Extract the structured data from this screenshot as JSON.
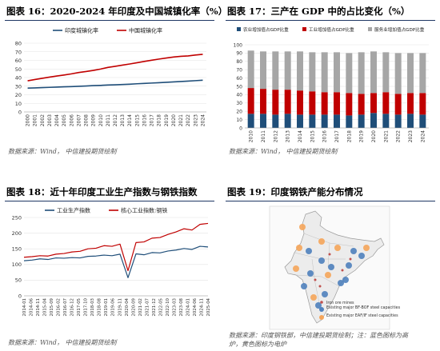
{
  "panel16": {
    "title": "图表 16：2020-2024 年印度及中国城镇化率（%）",
    "source": "数据来源：Wind，  中信建投期货绘制"
  },
  "panel17": {
    "title": "图表 17：三产在 GDP 中的占比变化（%）",
    "source": "数据来源：Wind，  中信建投期货绘制"
  },
  "panel18": {
    "title": "图表 18：近十年印度工业生产指数与钢铁指数",
    "source": "数据来源：Wind，  中信建投期货绘制"
  },
  "panel19": {
    "title": "图表 19：印度钢铁产能分布情况",
    "source_line1": "数据来源：印度钢铁部，中信建投期货绘制；注：蓝色图标为高",
    "source_line2": "炉，黄色图标为电炉",
    "legend": [
      "Iron ore mines",
      "Existing major BF-BOF steel capacities",
      "Existing major EAF/IF steel capacities"
    ]
  },
  "colors": {
    "navy": "#1f4e79",
    "red": "#c00000",
    "gray": "#a6a6a6",
    "blue": "#1f77b4"
  },
  "chart_data": [
    {
      "id": "chart16",
      "type": "line",
      "x": [
        "2000",
        "2001",
        "2002",
        "2003",
        "2004",
        "2005",
        "2006",
        "2007",
        "2008",
        "2009",
        "2010",
        "2011",
        "2012",
        "2013",
        "2014",
        "2015",
        "2016",
        "2017",
        "2018",
        "2019",
        "2020",
        "2021",
        "2022",
        "2023",
        "2024"
      ],
      "series": [
        {
          "name": "印度城镇化率",
          "color": "#1f4e79",
          "values": [
            27.7,
            28.0,
            28.3,
            28.6,
            28.9,
            29.2,
            29.5,
            29.8,
            30.2,
            30.6,
            30.9,
            31.3,
            31.6,
            31.9,
            32.3,
            32.8,
            33.2,
            33.6,
            34.0,
            34.5,
            34.9,
            35.4,
            35.9,
            36.4,
            36.9
          ]
        },
        {
          "name": "中国城镇化率",
          "color": "#c00000",
          "values": [
            36.2,
            37.7,
            39.1,
            40.5,
            41.8,
            43.0,
            44.3,
            45.9,
            47.0,
            48.3,
            49.9,
            51.8,
            53.1,
            54.5,
            55.8,
            57.3,
            58.8,
            60.2,
            61.5,
            62.7,
            63.9,
            64.7,
            65.2,
            66.2,
            67.0
          ]
        }
      ],
      "ylim": [
        0,
        80
      ],
      "yticks": [
        0,
        10,
        20,
        30,
        40,
        50,
        60,
        70,
        80
      ],
      "grid": true,
      "legend": "top"
    },
    {
      "id": "chart17",
      "type": "bar",
      "stacked": true,
      "categories": [
        "2010",
        "2011",
        "2012",
        "2013",
        "2014",
        "2015",
        "2016",
        "2017",
        "2018",
        "2019",
        "2020",
        "2021",
        "2022",
        "2023",
        "2024"
      ],
      "series": [
        {
          "name": "农业增加值占GDP比重",
          "color": "#1f4e79",
          "values": [
            17,
            17,
            16,
            17,
            16,
            16,
            16,
            16,
            15,
            16,
            18,
            17,
            16,
            17,
            16
          ]
        },
        {
          "name": "工业增加值占GDP比重",
          "color": "#c00000",
          "values": [
            31,
            30,
            30,
            29,
            29,
            28,
            27,
            27,
            27,
            25,
            24,
            26,
            25,
            25,
            26
          ]
        },
        {
          "name": "服务业增加值占GDP比重",
          "color": "#a6a6a6",
          "values": [
            45,
            45,
            46,
            46,
            47,
            47,
            48,
            48,
            48,
            50,
            50,
            48,
            49,
            48,
            48
          ]
        }
      ],
      "ylim": [
        0,
        100
      ],
      "yticks": [
        0,
        10,
        20,
        30,
        40,
        50,
        60,
        70,
        80,
        90,
        100
      ],
      "grid": true,
      "legend": "top"
    },
    {
      "id": "chart18",
      "type": "line",
      "x": [
        "2014-01",
        "2014-07",
        "2015-01",
        "2015-07",
        "2016-01",
        "2016-07",
        "2017-01",
        "2017-07",
        "2018-01",
        "2018-07",
        "2019-01",
        "2019-07",
        "2020-01",
        "2020-07",
        "2021-01",
        "2021-07",
        "2022-01",
        "2022-07",
        "2023-01",
        "2023-07",
        "2024-01",
        "2024-07",
        "2025-01",
        "2025-04"
      ],
      "x_tick_labels": [
        "2014-01",
        "2014-06",
        "2014-11",
        "2015-04",
        "2015-09",
        "2016-02",
        "2016-07",
        "2016-12",
        "2017-05",
        "2017-10",
        "2018-03",
        "2018-08",
        "2019-01",
        "2019-06",
        "2019-11",
        "2020-04",
        "2020-09",
        "2021-02",
        "2021-07",
        "2021-12",
        "2022-05",
        "2022-10",
        "2023-03",
        "2023-08",
        "2024-01",
        "2024-06",
        "2024-11",
        "2025-04"
      ],
      "series": [
        {
          "name": "工业生产指数",
          "color": "#1f4e79",
          "values": [
            112,
            114,
            118,
            116,
            121,
            120,
            122,
            121,
            126,
            127,
            130,
            128,
            133,
            58,
            134,
            131,
            138,
            137,
            143,
            146,
            151,
            148,
            158,
            156
          ]
        },
        {
          "name": "核心工业指数:钢铁",
          "color": "#c00000",
          "values": [
            123,
            125,
            128,
            127,
            133,
            135,
            140,
            142,
            150,
            152,
            160,
            158,
            165,
            80,
            170,
            172,
            184,
            186,
            196,
            204,
            214,
            210,
            228,
            231
          ]
        }
      ],
      "ylim": [
        0,
        250
      ],
      "yticks": [
        0,
        50,
        100,
        150,
        200,
        250
      ],
      "grid": true,
      "legend": "top"
    }
  ]
}
